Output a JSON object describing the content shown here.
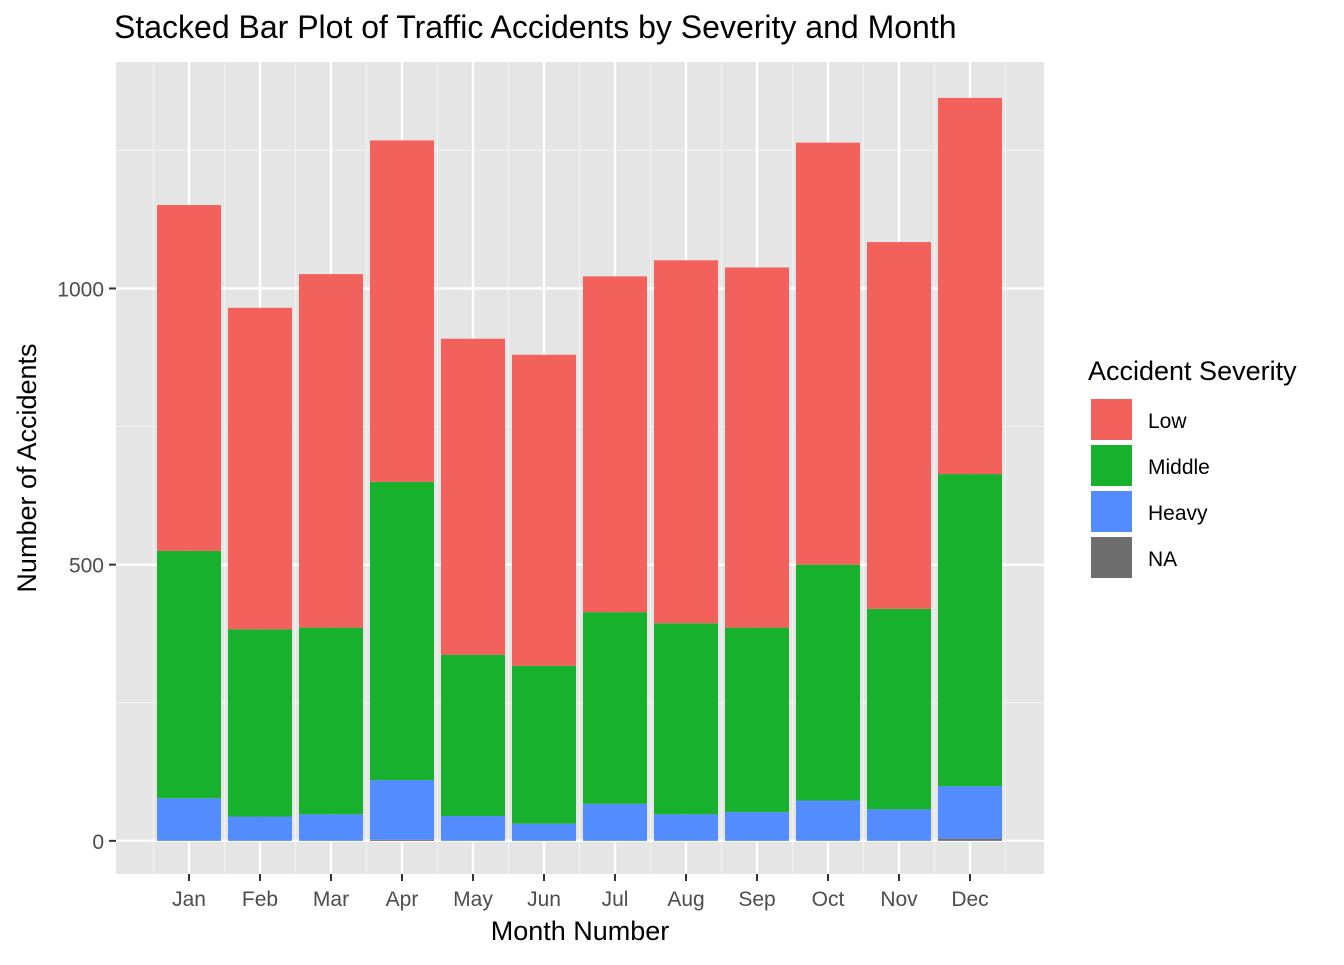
{
  "chart_data": {
    "type": "bar",
    "stacked": true,
    "title": "Stacked Bar Plot of Traffic Accidents by Severity and Month",
    "xlabel": "Month Number",
    "ylabel": "Number of Accidents",
    "categories": [
      "Jan",
      "Feb",
      "Mar",
      "Apr",
      "May",
      "Jun",
      "Jul",
      "Aug",
      "Sep",
      "Oct",
      "Nov",
      "Dec"
    ],
    "ylim": [
      -60,
      1410
    ],
    "yticks": [
      0,
      500,
      1000
    ],
    "ytick_labels": [
      "0",
      "500",
      "1000"
    ],
    "grid": true,
    "legend": {
      "title": "Accident Severity",
      "position": "right"
    },
    "series": [
      {
        "name": "NA",
        "color": "#6e6e6e",
        "values": [
          0,
          0,
          0,
          2,
          0,
          0,
          0,
          0,
          0,
          0,
          0,
          4
        ]
      },
      {
        "name": "Heavy",
        "color": "#528cff",
        "values": [
          77,
          44,
          48,
          108,
          45,
          31,
          67,
          48,
          52,
          73,
          57,
          95
        ]
      },
      {
        "name": "Middle",
        "color": "#18b12e",
        "values": [
          448,
          339,
          338,
          540,
          292,
          286,
          347,
          346,
          334,
          427,
          363,
          565
        ]
      },
      {
        "name": "Low",
        "color": "#f3615c",
        "values": [
          626,
          582,
          640,
          618,
          572,
          563,
          608,
          657,
          652,
          764,
          664,
          681
        ]
      }
    ],
    "legend_order": [
      "Low",
      "Middle",
      "Heavy",
      "NA"
    ]
  }
}
